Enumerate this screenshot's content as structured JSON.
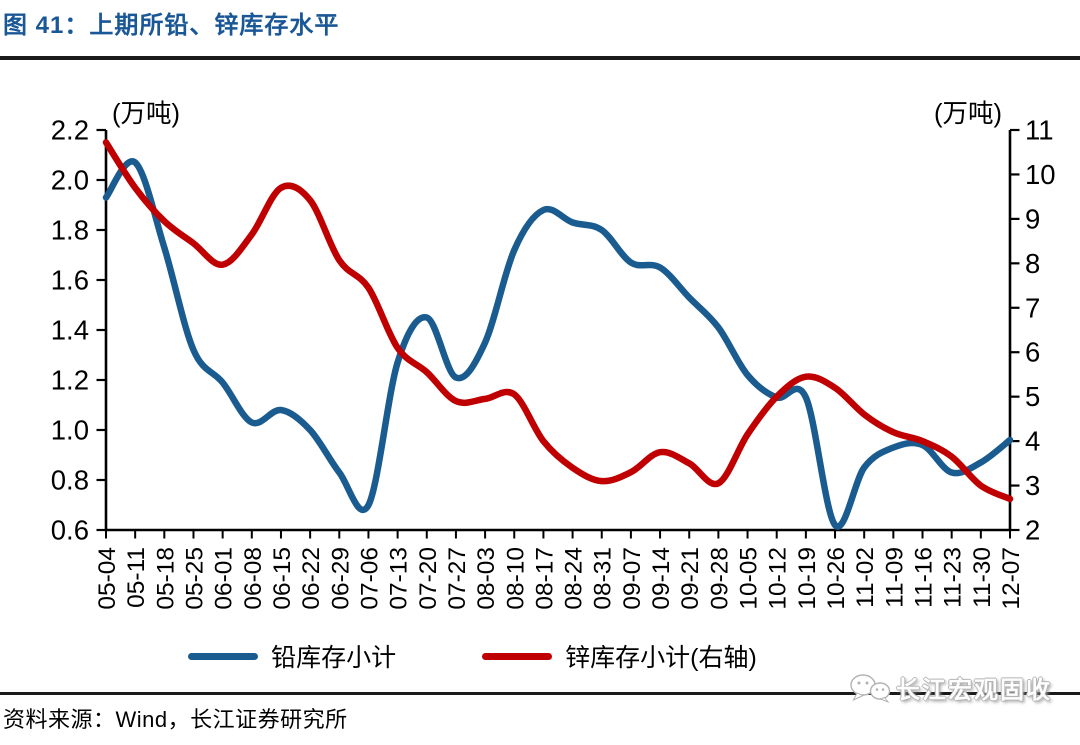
{
  "header": {
    "title": "图 41：上期所铅、锌库存水平"
  },
  "colors": {
    "title": "#1A5796",
    "lead_line": "#1A5C8F",
    "zinc_line": "#C00000",
    "axis": "#000000",
    "divider": "#1A1A1A"
  },
  "chart_data": {
    "type": "line",
    "smoothed": true,
    "grid": false,
    "legend_position": "bottom",
    "categories": [
      "05-04",
      "05-11",
      "05-18",
      "05-25",
      "06-01",
      "06-08",
      "06-15",
      "06-22",
      "06-29",
      "07-06",
      "07-13",
      "07-20",
      "07-27",
      "08-03",
      "08-10",
      "08-17",
      "08-24",
      "08-31",
      "09-07",
      "09-14",
      "09-21",
      "09-28",
      "10-05",
      "10-12",
      "10-19",
      "10-26",
      "11-02",
      "11-09",
      "11-16",
      "11-23",
      "11-30",
      "12-07"
    ],
    "series": [
      {
        "key": "lead",
        "name": "铅库存小计",
        "axis": "left",
        "color": "#1A5C8F",
        "values": [
          1.93,
          2.07,
          1.73,
          1.32,
          1.19,
          1.03,
          1.08,
          1.0,
          0.83,
          0.7,
          1.27,
          1.45,
          1.21,
          1.35,
          1.72,
          1.88,
          1.83,
          1.8,
          1.67,
          1.65,
          1.53,
          1.41,
          1.22,
          1.13,
          1.13,
          0.62,
          0.85,
          0.93,
          0.94,
          0.83,
          0.87,
          0.96
        ]
      },
      {
        "key": "zinc",
        "name": "锌库存小计(右轴)",
        "axis": "right",
        "color": "#C00000",
        "values": [
          10.72,
          9.7,
          8.95,
          8.45,
          7.97,
          8.65,
          9.7,
          9.42,
          8.07,
          7.45,
          6.1,
          5.55,
          4.9,
          4.95,
          5.05,
          4.0,
          3.4,
          3.1,
          3.3,
          3.75,
          3.5,
          3.05,
          4.15,
          5.0,
          5.45,
          5.2,
          4.6,
          4.2,
          4.0,
          3.65,
          3.0,
          2.7
        ]
      }
    ],
    "left_axis": {
      "label": "(万吨)",
      "min": 0.6,
      "max": 2.2,
      "step": 0.2,
      "ticks": [
        "2.2",
        "2.0",
        "1.8",
        "1.6",
        "1.4",
        "1.2",
        "1.0",
        "0.8",
        "0.6"
      ]
    },
    "right_axis": {
      "label": "(万吨)",
      "min": 2,
      "max": 11,
      "step": 1,
      "ticks": [
        "11",
        "10",
        "9",
        "8",
        "7",
        "6",
        "5",
        "4",
        "3",
        "2"
      ]
    }
  },
  "source": {
    "text": "资料来源：Wind，长江证券研究所"
  },
  "watermark": {
    "text": "长江宏观固收",
    "icon": "wechat-bubbles-icon"
  }
}
